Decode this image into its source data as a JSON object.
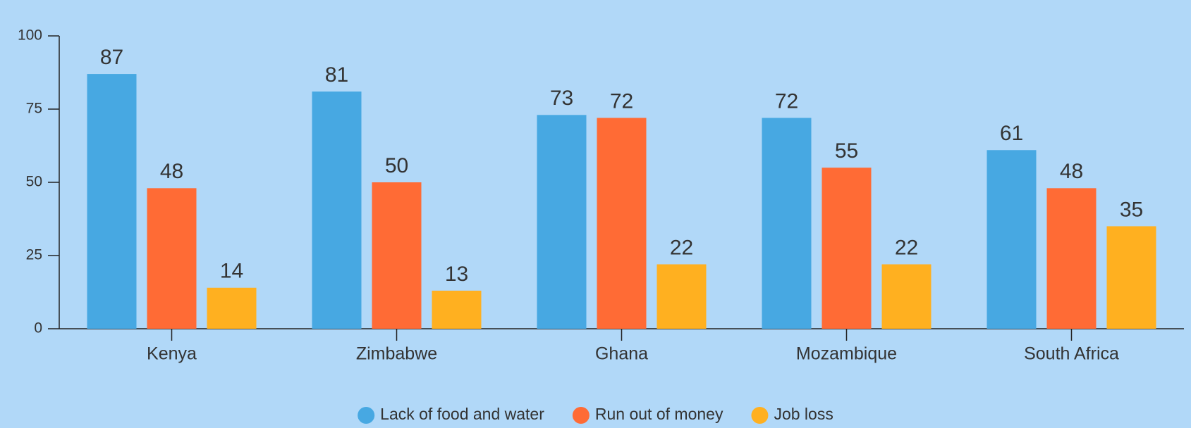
{
  "chart_data": {
    "type": "bar",
    "categories": [
      "Kenya",
      "Zimbabwe",
      "Ghana",
      "Mozambique",
      "South Africa"
    ],
    "series": [
      {
        "name": "Lack of food and water",
        "color": "#47a8e2",
        "values": [
          87,
          81,
          73,
          72,
          61
        ]
      },
      {
        "name": "Run out of money",
        "color": "#ff6b35",
        "values": [
          48,
          50,
          72,
          55,
          48
        ]
      },
      {
        "name": "Job loss",
        "color": "#ffb020",
        "values": [
          14,
          13,
          22,
          22,
          35
        ]
      }
    ],
    "ylim": [
      0,
      100
    ],
    "yticks": [
      0,
      25,
      50,
      75,
      100
    ],
    "grid": false,
    "legend": "bottom"
  }
}
